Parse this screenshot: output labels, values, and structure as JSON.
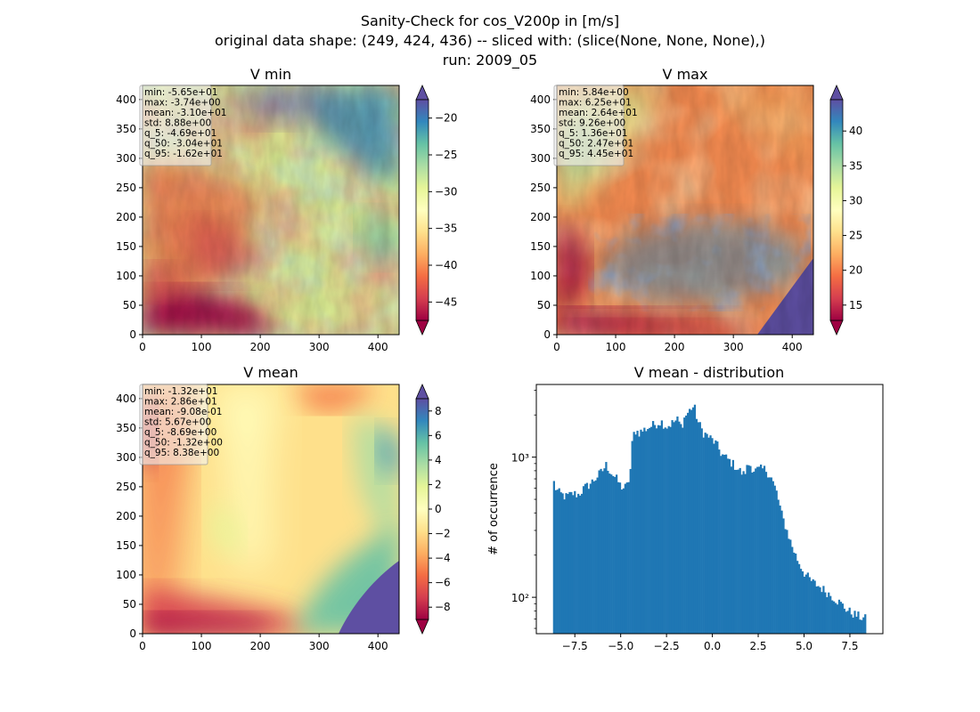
{
  "figure": {
    "title_lines": [
      "Sanity-Check for cos_V200p in [m/s]",
      "original data shape: (249, 424, 436) -- sliced with: (slice(None, None, None),)",
      "run: 2009_05"
    ]
  },
  "chart_data": [
    {
      "type": "heatmap",
      "title": "V min",
      "xlim": [
        0,
        436
      ],
      "ylim": [
        0,
        424
      ],
      "x_ticks": [
        "0",
        "100",
        "200",
        "300",
        "400"
      ],
      "y_ticks": [
        "0",
        "50",
        "100",
        "150",
        "200",
        "250",
        "300",
        "350",
        "400"
      ],
      "x_tick_values": [
        0,
        100,
        200,
        300,
        400
      ],
      "y_tick_values": [
        0,
        50,
        100,
        150,
        200,
        250,
        300,
        350,
        400
      ],
      "colormap": "Spectral",
      "colorbar": {
        "vmin": -47.5,
        "vmax": -17.5,
        "ticks": [
          "−45",
          "−40",
          "−35",
          "−30",
          "−25",
          "−20"
        ],
        "tick_values": [
          -45,
          -40,
          -35,
          -30,
          -25,
          -20
        ]
      },
      "stats": [
        "min: -5.65e+01",
        "max: -3.74e+00",
        "mean: -3.10e+01",
        "std: 8.88e+00",
        "q_5: -4.69e+01",
        "q_50: -3.04e+01",
        "q_95: -1.62e+01"
      ]
    },
    {
      "type": "heatmap",
      "title": "V max",
      "xlim": [
        0,
        436
      ],
      "ylim": [
        0,
        424
      ],
      "x_ticks": [
        "0",
        "100",
        "200",
        "300",
        "400"
      ],
      "y_ticks": [
        "0",
        "50",
        "100",
        "150",
        "200",
        "250",
        "300",
        "350",
        "400"
      ],
      "x_tick_values": [
        0,
        100,
        200,
        300,
        400
      ],
      "y_tick_values": [
        0,
        50,
        100,
        150,
        200,
        250,
        300,
        350,
        400
      ],
      "colormap": "Spectral",
      "colorbar": {
        "vmin": 12.8,
        "vmax": 44.5,
        "ticks": [
          "15",
          "20",
          "25",
          "30",
          "35",
          "40"
        ],
        "tick_values": [
          15,
          20,
          25,
          30,
          35,
          40
        ]
      },
      "stats": [
        "min: 5.84e+00",
        "max: 6.25e+01",
        "mean: 2.64e+01",
        "std: 9.26e+00",
        "q_5: 1.36e+01",
        "q_50: 2.47e+01",
        "q_95: 4.45e+01"
      ]
    },
    {
      "type": "heatmap",
      "title": "V mean",
      "xlim": [
        0,
        436
      ],
      "ylim": [
        0,
        424
      ],
      "x_ticks": [
        "0",
        "100",
        "200",
        "300",
        "400"
      ],
      "y_ticks": [
        "0",
        "50",
        "100",
        "150",
        "200",
        "250",
        "300",
        "350",
        "400"
      ],
      "x_tick_values": [
        0,
        100,
        200,
        300,
        400
      ],
      "y_tick_values": [
        0,
        50,
        100,
        150,
        200,
        250,
        300,
        350,
        400
      ],
      "colormap": "Spectral",
      "colorbar": {
        "vmin": -9,
        "vmax": 9,
        "ticks": [
          "−8",
          "−6",
          "−4",
          "−2",
          "0",
          "2",
          "4",
          "6",
          "8"
        ],
        "tick_values": [
          -8,
          -6,
          -4,
          -2,
          0,
          2,
          4,
          6,
          8
        ]
      },
      "stats": [
        "min: -1.32e+01",
        "max: 2.86e+01",
        "mean: -9.08e-01",
        "std: 5.67e+00",
        "q_5: -8.69e+00",
        "q_50: -1.32e+00",
        "q_95: 8.38e+00"
      ]
    },
    {
      "type": "bar",
      "title": "V mean - distribution",
      "ylabel": "# of occurrence",
      "xlabel": "",
      "yscale": "log",
      "xlim": [
        -9.6,
        9.3
      ],
      "ylim": [
        55,
        3300
      ],
      "x_ticks": [
        "−7.5",
        "−5.0",
        "−2.5",
        "0.0",
        "2.5",
        "5.0",
        "7.5"
      ],
      "x_tick_values": [
        -7.5,
        -5.0,
        -2.5,
        0.0,
        2.5,
        5.0,
        7.5
      ],
      "y_ticks": [
        "10²",
        "10³"
      ],
      "y_tick_values": [
        100,
        1000
      ],
      "color": "#1f77b4",
      "bin_start": -8.69,
      "bin_end": 8.38,
      "knots_x": [
        -8.69,
        -8.62,
        -8.4,
        -8.0,
        -7.6,
        -7.3,
        -7.0,
        -6.7,
        -6.4,
        -6.0,
        -5.8,
        -5.5,
        -5.2,
        -5.0,
        -4.8,
        -4.6,
        -4.45,
        -4.35,
        -4.2,
        -4.0,
        -3.6,
        -3.2,
        -2.8,
        -2.5,
        -2.2,
        -1.9,
        -1.7,
        -1.5,
        -1.3,
        -1.1,
        -0.95,
        -0.8,
        -0.5,
        -0.2,
        0.2,
        0.5,
        0.9,
        1.3,
        1.7,
        2.0,
        2.3,
        2.6,
        2.9,
        3.2,
        3.5,
        3.8,
        4.1,
        4.3,
        4.6,
        5.0,
        5.4,
        5.8,
        6.2,
        6.6,
        7.0,
        7.4,
        7.8,
        8.1,
        8.38
      ],
      "knots_y": [
        750,
        620,
        560,
        520,
        550,
        540,
        600,
        640,
        700,
        800,
        880,
        770,
        690,
        620,
        600,
        640,
        850,
        1400,
        1550,
        1500,
        1600,
        1700,
        1800,
        1650,
        1750,
        1850,
        1650,
        1950,
        2100,
        2300,
        2200,
        1800,
        1500,
        1400,
        1250,
        1050,
        950,
        850,
        750,
        900,
        800,
        820,
        820,
        720,
        560,
        380,
        290,
        240,
        190,
        150,
        130,
        120,
        110,
        100,
        90,
        80,
        75,
        72,
        70
      ],
      "noise": 0.08,
      "n_bins": 180
    }
  ]
}
